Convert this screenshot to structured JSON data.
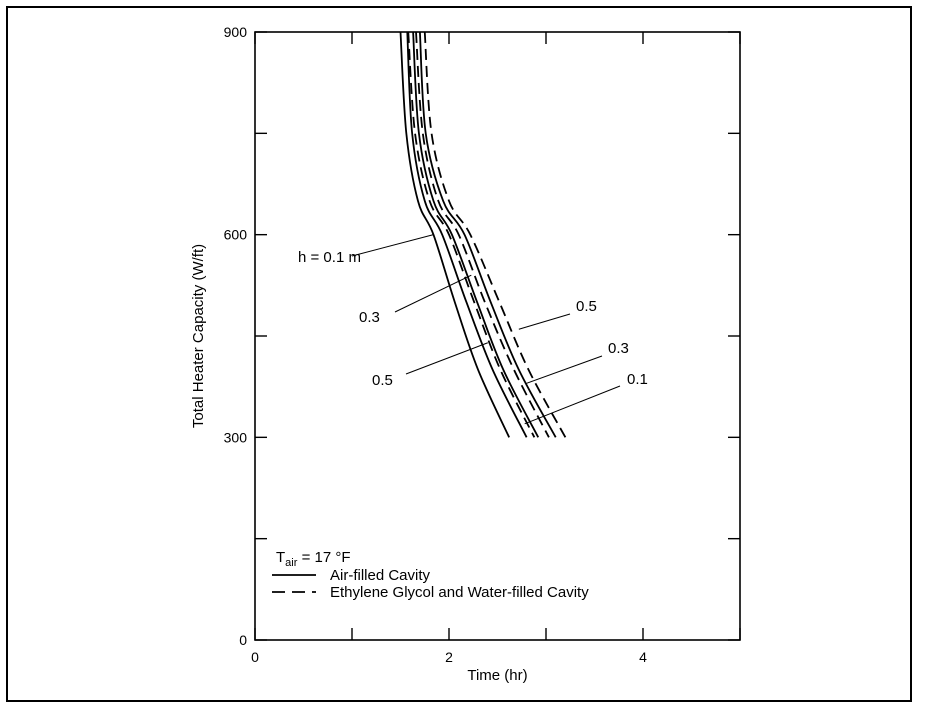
{
  "chart_data": {
    "type": "line",
    "xlabel": "Time (hr)",
    "ylabel": "Total Heater Capacity (W/ft)",
    "xlim": [
      0,
      5
    ],
    "ylim": [
      0,
      900
    ],
    "x_ticks": [
      0,
      1,
      2,
      3,
      4,
      5
    ],
    "x_tick_labels": [
      "0",
      "",
      "2",
      "",
      "4",
      ""
    ],
    "y_ticks": [
      0,
      150,
      300,
      450,
      600,
      750,
      900
    ],
    "y_tick_labels": [
      "0",
      "",
      "300",
      "",
      "600",
      "",
      "900"
    ],
    "grid": false,
    "legend_position": "bottom-left",
    "legend": {
      "condition_prefix": "T",
      "condition_sub": "air",
      "condition_value": " = 17 °F",
      "entries": [
        {
          "label": "Air-filled Cavity",
          "style": "solid"
        },
        {
          "label": "Ethylene Glycol and Water-filled Cavity",
          "style": "dashed"
        }
      ]
    },
    "series": [
      {
        "style": "solid",
        "group": "h = 0.1 m",
        "points": [
          [
            1.5,
            900
          ],
          [
            1.56,
            750
          ],
          [
            1.68,
            650
          ],
          [
            1.84,
            600
          ],
          [
            2.06,
            500
          ],
          [
            2.3,
            400
          ],
          [
            2.62,
            300
          ]
        ]
      },
      {
        "style": "solid",
        "group": "0.3",
        "points": [
          [
            1.57,
            900
          ],
          [
            1.62,
            750
          ],
          [
            1.75,
            650
          ],
          [
            1.93,
            600
          ],
          [
            2.18,
            500
          ],
          [
            2.45,
            400
          ],
          [
            2.8,
            300
          ]
        ]
      },
      {
        "style": "solid",
        "group": "0.5",
        "points": [
          [
            1.63,
            900
          ],
          [
            1.69,
            750
          ],
          [
            1.84,
            650
          ],
          [
            2.03,
            600
          ],
          [
            2.29,
            500
          ],
          [
            2.56,
            400
          ],
          [
            2.92,
            300
          ]
        ]
      },
      {
        "style": "solid",
        "group": "0.5 (right)",
        "points": [
          [
            1.7,
            900
          ],
          [
            1.76,
            750
          ],
          [
            1.94,
            650
          ],
          [
            2.16,
            600
          ],
          [
            2.43,
            500
          ],
          [
            2.72,
            400
          ],
          [
            3.1,
            300
          ]
        ]
      },
      {
        "style": "dashed",
        "group": "0.5 (dashed)",
        "points": [
          [
            1.58,
            900
          ],
          [
            1.65,
            750
          ],
          [
            1.8,
            650
          ],
          [
            2.0,
            600
          ],
          [
            2.26,
            500
          ],
          [
            2.53,
            400
          ],
          [
            2.88,
            300
          ]
        ]
      },
      {
        "style": "dashed",
        "group": "0.3 (dashed)",
        "points": [
          [
            1.66,
            900
          ],
          [
            1.73,
            750
          ],
          [
            1.89,
            650
          ],
          [
            2.1,
            600
          ],
          [
            2.37,
            500
          ],
          [
            2.67,
            400
          ],
          [
            3.03,
            300
          ]
        ]
      },
      {
        "style": "dashed",
        "group": "0.1 (dashed)",
        "points": [
          [
            1.75,
            900
          ],
          [
            1.82,
            750
          ],
          [
            2.0,
            650
          ],
          [
            2.22,
            600
          ],
          [
            2.52,
            500
          ],
          [
            2.82,
            400
          ],
          [
            3.2,
            300
          ]
        ]
      }
    ],
    "annotations": [
      {
        "text": "h = 0.1 m",
        "side": "left",
        "at": [
          1.84,
          600
        ]
      },
      {
        "text": "0.3",
        "side": "left",
        "at": [
          2.23,
          540
        ]
      },
      {
        "text": "0.5",
        "side": "left",
        "at": [
          2.4,
          440
        ]
      },
      {
        "text": "0.5",
        "side": "right",
        "at": [
          2.72,
          460
        ]
      },
      {
        "text": "0.3",
        "side": "right",
        "at": [
          2.8,
          380
        ]
      },
      {
        "text": "0.1",
        "side": "right",
        "at": [
          2.78,
          320
        ]
      }
    ]
  }
}
